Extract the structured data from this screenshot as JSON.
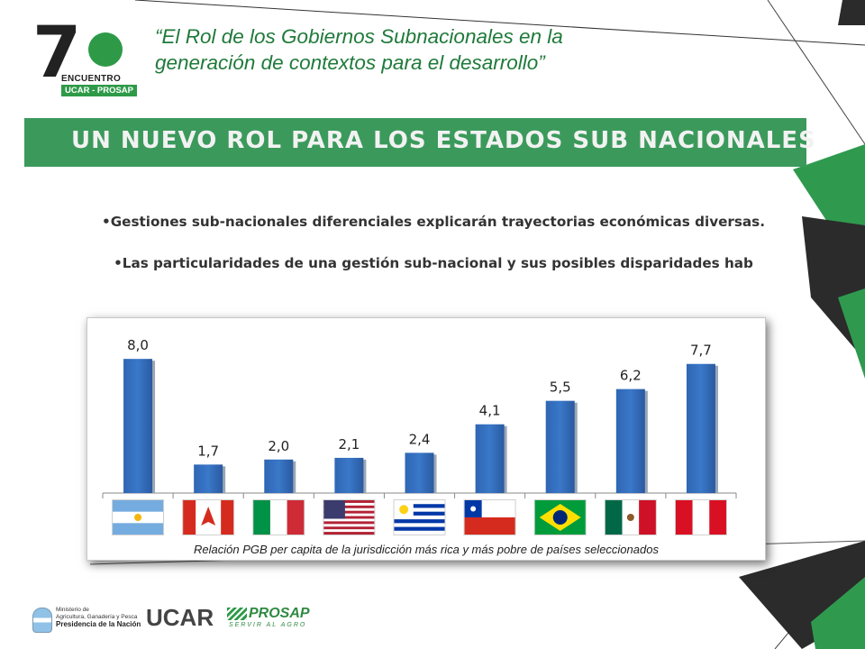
{
  "header": {
    "title_line1": "“El Rol de los Gobiernos Subnacionales en la",
    "title_line2": "generación de contextos para el desarrollo”"
  },
  "logo": {
    "number": "7",
    "line1": "ENCUENTRO",
    "line2": "UCAR - PROSAP"
  },
  "banner": {
    "text": "UN NUEVO ROL PARA LOS ESTADOS SUB NACIONALES"
  },
  "bullets": [
    "•Gestiones sub-nacionales diferenciales explicarán trayectorias económicas diversas.",
    "•Las particularidades de una gestión sub-nacional y sus posibles disparidades hab"
  ],
  "chart_data": {
    "type": "bar",
    "categories": [
      "Argentina",
      "Canadá",
      "Italia",
      "Estados Unidos",
      "Uruguay",
      "Chile",
      "Brasil",
      "México",
      "Perú"
    ],
    "values": [
      8.0,
      1.7,
      2.0,
      2.1,
      2.4,
      4.1,
      5.5,
      6.2,
      7.7
    ],
    "value_labels": [
      "8,0",
      "1,7",
      "2,0",
      "2,1",
      "2,4",
      "4,1",
      "5,5",
      "6,2",
      "7,7"
    ],
    "ylim": [
      0,
      8.6
    ],
    "grid": false,
    "legend": "none",
    "bar_color": "#3a78c9",
    "caption": "Relación PGB per capita de la jurisdicción más rica y más pobre de países seleccionados"
  },
  "footer": {
    "ministry_line1": "Ministerio de",
    "ministry_line2": "Agricultura, Ganadería y Pesca",
    "ministry_line3": "Presidencia de la Nación",
    "ucar": "UCAR",
    "prosap": "PROSAP",
    "prosap_sub": "SERVIR AL AGRO"
  },
  "colors": {
    "accent_green": "#3b9a5b",
    "title_green": "#1f7a3a",
    "decor_dark": "#2b2b2b"
  }
}
